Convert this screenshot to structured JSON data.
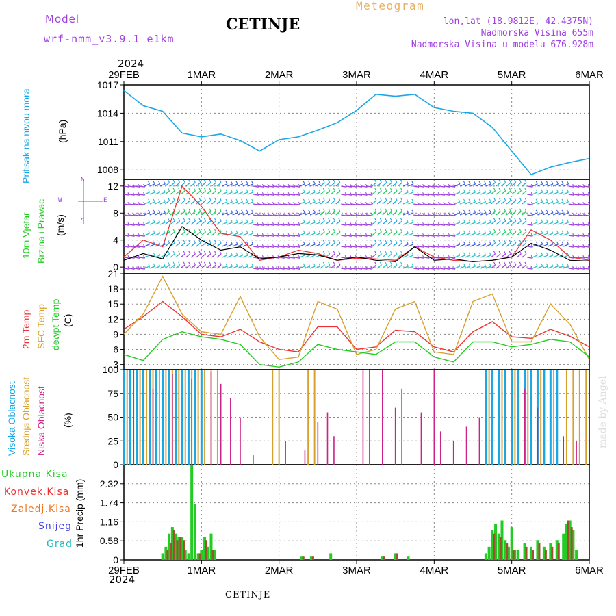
{
  "header": {
    "model_label": "Model",
    "model_name": "wrf-nmm_v3.9.1 e1km",
    "station": "CETINJE",
    "meteogram": "Meteogram",
    "lonlat": "lon,lat (18.9812E, 42.4375N)",
    "elevation": "Nadmorska Visina 655m",
    "model_elevation": "Nadmorska Visina u modelu 676.928m",
    "footer_station": "CETINJE",
    "watermark": "made by Angel"
  },
  "colors": {
    "pressure": "#1aa7e6",
    "wind_label": "#22cc22",
    "wind_purple": "#a040e0",
    "t2m": "#ee3333",
    "sfc": "#d9a030",
    "dewpt": "#22cc22",
    "high_cloud": "#1aa7e6",
    "mid_cloud": "#d9a030",
    "low_cloud": "#cc2288",
    "total_precip": "#22cc22",
    "conv_precip": "#ee3333",
    "frozen_precip": "#ee7722",
    "snow": "#4444dd",
    "hail": "#22bbbb"
  },
  "time_axis": {
    "year": "2024",
    "ticks": [
      "29FEB",
      "1MAR",
      "2MAR",
      "3MAR",
      "4MAR",
      "5MAR",
      "6MAR"
    ]
  },
  "chart_data": [
    {
      "type": "line",
      "title": "Pritisak na nivou mora",
      "ylabel": "(hPa)",
      "ylim": [
        1007,
        1017
      ],
      "yticks": [
        "1017",
        "1014",
        "1011",
        "1008"
      ],
      "x_unit": "hours since 29FEB 00",
      "series": [
        {
          "name": "Pritisak na nivou mora",
          "x": [
            0,
            6,
            12,
            18,
            24,
            30,
            36,
            42,
            48,
            54,
            60,
            66,
            72,
            78,
            84,
            90,
            96,
            102,
            108,
            114,
            120,
            126,
            132,
            138,
            144
          ],
          "values": [
            1016.4,
            1014.8,
            1014.2,
            1011.9,
            1011.5,
            1011.8,
            1011.1,
            1010.0,
            1011.2,
            1011.5,
            1012.2,
            1013.0,
            1014.3,
            1016.0,
            1015.8,
            1016.0,
            1014.6,
            1014.2,
            1014.0,
            1012.5,
            1010.0,
            1007.5,
            1008.3,
            1008.8,
            1009.2
          ]
        }
      ]
    },
    {
      "type": "line",
      "title": "10m Vjetar Brzina i Pravac",
      "ylabel": "(m/s)",
      "ylim": [
        -1,
        13
      ],
      "yticks": [
        "12",
        "8",
        "4",
        "0"
      ],
      "wind_legend": [
        "N",
        "W",
        "E",
        "S"
      ],
      "series": [
        {
          "name": "brzina",
          "x": [
            0,
            6,
            12,
            18,
            24,
            30,
            36,
            42,
            48,
            54,
            60,
            66,
            72,
            78,
            84,
            90,
            96,
            102,
            108,
            114,
            120,
            126,
            132,
            138,
            144
          ],
          "values": [
            1.0,
            2.0,
            1.2,
            6.0,
            4.0,
            2.5,
            3.0,
            1.2,
            1.5,
            2.0,
            1.8,
            1.0,
            1.5,
            1.0,
            0.8,
            3.0,
            1.0,
            1.2,
            0.8,
            1.0,
            1.5,
            3.5,
            2.5,
            1.0,
            0.9
          ]
        },
        {
          "name": "udari",
          "x": [
            0,
            6,
            12,
            18,
            24,
            30,
            36,
            42,
            48,
            54,
            60,
            66,
            72,
            78,
            84,
            90,
            96,
            102,
            108,
            114,
            120,
            126,
            132,
            138,
            144
          ],
          "values": [
            1.5,
            4.0,
            3.0,
            12.0,
            9.0,
            5.0,
            4.5,
            1.0,
            1.5,
            2.5,
            2.0,
            1.0,
            1.3,
            1.2,
            1.0,
            3.0,
            1.5,
            1.0,
            0.8,
            1.0,
            1.5,
            5.5,
            4.0,
            1.5,
            1.0
          ]
        }
      ]
    },
    {
      "type": "line",
      "title": "2m Temp / SFC Temp / dewpt Temp",
      "ylabel": "(C)",
      "ylim": [
        2,
        21
      ],
      "yticks": [
        "21",
        "18",
        "15",
        "12",
        "9",
        "6",
        "3"
      ],
      "series_labels": [
        "2m Temp",
        "SFC Temp",
        "dewpt Temp"
      ],
      "series": [
        {
          "name": "2m Temp",
          "x": [
            0,
            6,
            12,
            18,
            24,
            30,
            36,
            42,
            48,
            54,
            60,
            66,
            72,
            78,
            84,
            90,
            96,
            102,
            108,
            114,
            120,
            126,
            132,
            138,
            144
          ],
          "values": [
            10,
            12.5,
            15.5,
            12.5,
            9,
            8.5,
            10,
            7.5,
            6,
            5.5,
            10.5,
            10.5,
            6,
            6.5,
            9.8,
            9.5,
            6.5,
            5.5,
            9.5,
            11.5,
            8.5,
            8.2,
            10,
            8.6,
            6.5
          ]
        },
        {
          "name": "SFC Temp",
          "x": [
            0,
            6,
            12,
            18,
            24,
            30,
            36,
            42,
            48,
            54,
            60,
            66,
            72,
            78,
            84,
            90,
            96,
            102,
            108,
            114,
            120,
            126,
            132,
            138,
            144
          ],
          "values": [
            9,
            13,
            20.5,
            13,
            9.5,
            9,
            16.5,
            8.5,
            4,
            4.5,
            15.5,
            14,
            5,
            6,
            14,
            15.5,
            5.5,
            5,
            15.5,
            17,
            7.5,
            7.5,
            15,
            11,
            4
          ]
        },
        {
          "name": "dewpt Temp",
          "x": [
            0,
            6,
            12,
            18,
            24,
            30,
            36,
            42,
            48,
            54,
            60,
            66,
            72,
            78,
            84,
            90,
            96,
            102,
            108,
            114,
            120,
            126,
            132,
            138,
            144
          ],
          "values": [
            5,
            3.8,
            8,
            9.5,
            8.5,
            8,
            7,
            3,
            2.5,
            3.5,
            7,
            6,
            5.5,
            5,
            7.5,
            7.5,
            4.5,
            3.5,
            7.5,
            7.5,
            6.5,
            7,
            8,
            7.5,
            4.5
          ]
        }
      ]
    },
    {
      "type": "bar",
      "title": "Visoka Oblacnost / Srednja Oblacnost / Niska Oblacnost",
      "ylabel": "(%)",
      "ylim": [
        0,
        100
      ],
      "yticks": [
        "100",
        "75",
        "50",
        "25",
        "0"
      ],
      "series_labels": [
        "Visoka Oblacnost",
        "Srednja Oblacnost",
        "Niska Oblacnost"
      ],
      "series": [
        {
          "name": "Visoka Oblacnost",
          "x": [
            0,
            2,
            4,
            6,
            8,
            10,
            12,
            14,
            16,
            18,
            20,
            22,
            24,
            112,
            114,
            116,
            118,
            120,
            122,
            124,
            126,
            128,
            130,
            132,
            134
          ],
          "values": [
            100,
            100,
            100,
            100,
            100,
            100,
            100,
            100,
            100,
            100,
            100,
            100,
            100,
            100,
            100,
            100,
            100,
            100,
            100,
            100,
            100,
            100,
            100,
            100,
            100
          ]
        },
        {
          "name": "Srednja Oblacnost",
          "x": [
            1,
            3,
            5,
            7,
            9,
            11,
            13,
            15,
            17,
            19,
            21,
            23,
            25,
            27,
            29,
            46,
            48,
            57,
            59,
            113,
            117,
            121,
            125,
            129,
            133,
            137,
            139,
            141,
            143
          ],
          "values": [
            100,
            100,
            100,
            100,
            100,
            100,
            100,
            100,
            100,
            100,
            100,
            100,
            100,
            100,
            100,
            100,
            100,
            100,
            100,
            100,
            100,
            100,
            100,
            100,
            100,
            100,
            100,
            100,
            100
          ]
        },
        {
          "name": "Niska Oblacnost",
          "x": [
            3,
            9,
            15,
            21,
            27,
            30,
            33,
            36,
            40,
            50,
            56,
            60,
            63,
            65,
            74,
            76,
            80,
            84,
            86,
            92,
            96,
            98,
            102,
            106,
            110,
            124,
            128,
            136,
            140
          ],
          "values": [
            100,
            80,
            95,
            90,
            98,
            85,
            70,
            50,
            10,
            25,
            15,
            45,
            55,
            30,
            100,
            100,
            100,
            60,
            80,
            55,
            100,
            35,
            25,
            40,
            50,
            80,
            60,
            30,
            25
          ]
        }
      ]
    },
    {
      "type": "bar",
      "title": "1hr Precip",
      "ylabel": "1hr Precip (mm)",
      "ylim": [
        0,
        2.9
      ],
      "yticks": [
        "2.32",
        "1.74",
        "1.16",
        "0.58",
        "0"
      ],
      "series_labels": [
        "Ukupna Kisa",
        "Konvek.Kisa",
        "Zaledj.Kisa",
        "Snijeg",
        "Grad"
      ],
      "series": [
        {
          "name": "Ukupna Kisa",
          "x": [
            12,
            13,
            14,
            15,
            16,
            17,
            18,
            19,
            20,
            21,
            22,
            23,
            24,
            25,
            26,
            27,
            28,
            55,
            58,
            64,
            80,
            84,
            88,
            112,
            113,
            114,
            115,
            116,
            117,
            118,
            119,
            120,
            121,
            122,
            124,
            126,
            128,
            130,
            132,
            134,
            136,
            137,
            138,
            139,
            140
          ],
          "values": [
            0.2,
            0.4,
            0.8,
            1.0,
            0.8,
            0.7,
            0.7,
            0.3,
            0.2,
            2.9,
            1.7,
            0.2,
            0.3,
            0.7,
            0.4,
            0.8,
            0.3,
            0.1,
            0.1,
            0.2,
            0.1,
            0.2,
            0.1,
            0.2,
            0.4,
            0.9,
            1.1,
            0.8,
            1.2,
            0.6,
            0.4,
            1.0,
            0.3,
            0.3,
            0.5,
            0.4,
            0.6,
            0.4,
            0.5,
            0.6,
            0.8,
            1.1,
            1.2,
            0.9,
            0.3
          ]
        },
        {
          "name": "Konvek.Kisa",
          "x": [
            13,
            14,
            15,
            16,
            17,
            18,
            23,
            25,
            27,
            55,
            58,
            80,
            84,
            114,
            116,
            118,
            120,
            124,
            126,
            128,
            130,
            132,
            134,
            137,
            138
          ],
          "values": [
            0.3,
            0.5,
            0.9,
            0.6,
            0.7,
            0.6,
            0.2,
            0.6,
            0.3,
            0.1,
            0.1,
            0.1,
            0.2,
            0.8,
            0.7,
            0.5,
            0.3,
            0.4,
            0.3,
            0.5,
            0.3,
            0.4,
            0.5,
            1.2,
            1.0
          ]
        }
      ]
    }
  ]
}
